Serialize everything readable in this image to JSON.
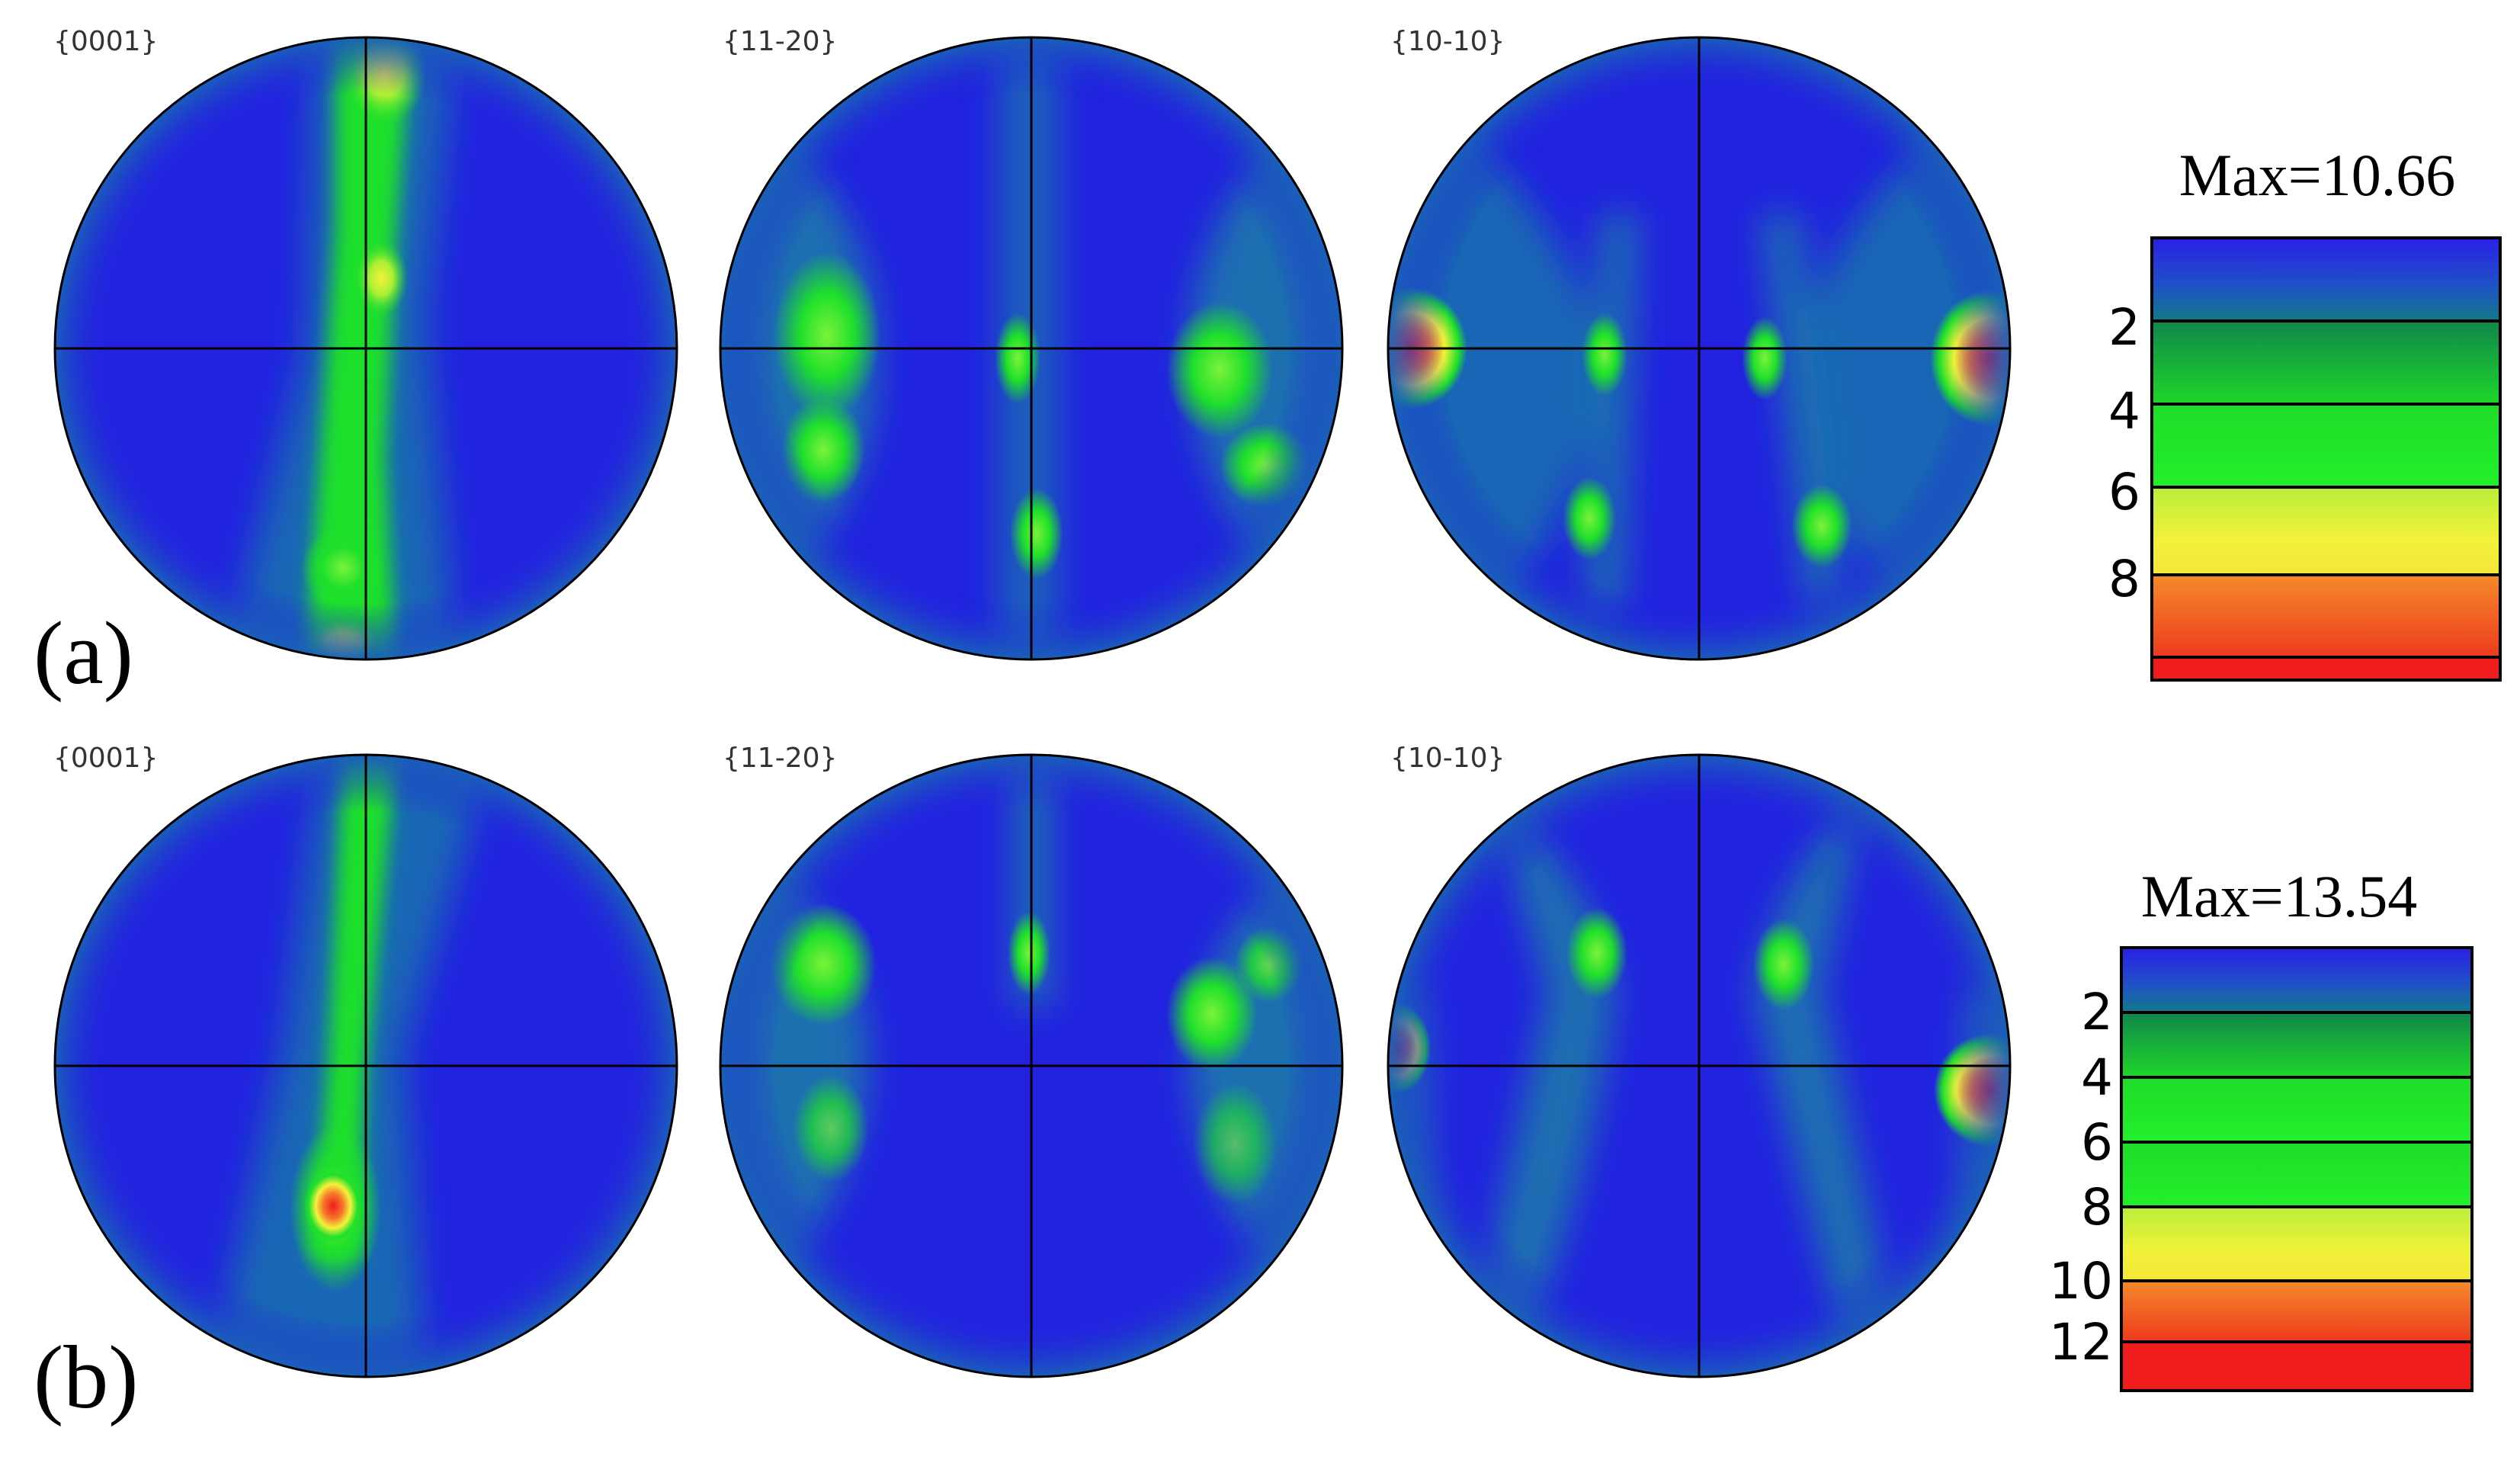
{
  "rows": [
    {
      "label": "(a)",
      "figures": [
        {
          "title": "{0001}"
        },
        {
          "title": "{11-20}"
        },
        {
          "title": "{10-10}"
        }
      ],
      "legend": {
        "max_text": "Max=10.66",
        "max_value": 10.66,
        "levels": [
          "2",
          "4",
          "6",
          "8"
        ]
      }
    },
    {
      "label": "(b)",
      "figures": [
        {
          "title": "{0001}"
        },
        {
          "title": "{11-20}"
        },
        {
          "title": "{10-10}"
        }
      ],
      "legend": {
        "max_text": "Max=13.54",
        "max_value": 13.54,
        "levels": [
          "2",
          "4",
          "6",
          "8",
          "10",
          "12"
        ]
      }
    }
  ],
  "colors": {
    "background_low": "#2222e0",
    "ring": "#1a6fb0",
    "green": "#1fe02b",
    "yellow": "#f4f23a",
    "orange": "#f57a2a",
    "red": "#ee1c1c",
    "line": "#000000"
  }
}
